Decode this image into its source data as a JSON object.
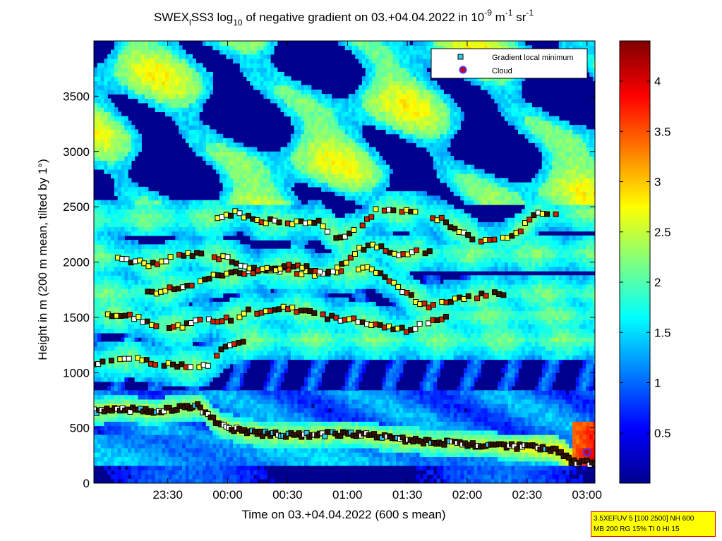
{
  "title": {
    "prefix": "SWEX",
    "sub": "l",
    "mid": "SS3 log",
    "log_base": "10",
    "rest": " of negative gradient on 03.+04.04.2022 in 10",
    "exp1": "-9",
    "unit1": " m",
    "exp2": "-1",
    "unit2": " sr",
    "exp3": "-1"
  },
  "info_box": {
    "line1": "3.5XEFUV 5 [100 2500] NH 600",
    "line2": "MB 200 RG 15% TI 0 HI 15"
  },
  "chart_data": {
    "type": "heatmap",
    "xlabel": "Time on 03.+04.04.2022 (600 s mean)",
    "ylabel": "Height in m (200 m mean, tilted by 1°)",
    "x_ticks": [
      "23:30",
      "00:00",
      "00:30",
      "01:00",
      "01:30",
      "02:00",
      "02:30",
      "03:00"
    ],
    "x_tick_minutes": [
      30,
      60,
      90,
      120,
      150,
      180,
      210,
      240
    ],
    "x_range_minutes": [
      -7,
      244
    ],
    "y_ticks": [
      0,
      500,
      1000,
      1500,
      2000,
      2500,
      3000,
      3500
    ],
    "ylim": [
      0,
      4000
    ],
    "colorbar": {
      "ticks": [
        0.5,
        1,
        1.5,
        2,
        2.5,
        3,
        3.5,
        4
      ],
      "range": [
        0,
        4.4
      ],
      "colormap": "jet"
    },
    "legend": {
      "placement": "top-right",
      "entries": [
        {
          "label": "Gradient local minimum",
          "marker": "square",
          "color": "#33ccee"
        },
        {
          "label": "Cloud",
          "marker": "circle",
          "color": "#cc0000"
        }
      ]
    },
    "series": [
      {
        "x": [
          -7,
          5,
          15,
          25,
          35,
          45,
          55,
          65,
          75,
          85,
          95,
          105,
          115,
          125,
          135,
          145,
          155,
          165,
          175,
          185,
          195,
          205,
          215,
          225,
          232,
          236,
          240,
          244
        ],
        "y": [
          650,
          680,
          660,
          650,
          680,
          700,
          540,
          480,
          450,
          440,
          430,
          440,
          450,
          440,
          420,
          400,
          380,
          370,
          360,
          350,
          340,
          330,
          320,
          300,
          200,
          190,
          185,
          180
        ]
      },
      {
        "x": [
          -7,
          0,
          10,
          20,
          30,
          40,
          50,
          60,
          70
        ],
        "y": [
          1080,
          1100,
          1130,
          1100,
          1070,
          1050,
          1080,
          1250,
          1300
        ]
      },
      {
        "x": [
          0,
          10,
          20,
          30,
          40,
          50,
          60,
          70,
          80,
          90,
          100,
          110,
          120,
          130,
          140,
          150,
          160,
          170
        ],
        "y": [
          1530,
          1530,
          1450,
          1420,
          1430,
          1480,
          1480,
          1550,
          1550,
          1580,
          1550,
          1500,
          1480,
          1460,
          1410,
          1380,
          1460,
          1520
        ]
      },
      {
        "x": [
          20,
          30,
          40,
          50,
          60,
          70,
          80,
          90,
          100,
          110,
          120,
          130,
          140,
          150,
          160,
          170,
          180,
          190,
          200
        ],
        "y": [
          1720,
          1750,
          1800,
          1850,
          1900,
          1910,
          1920,
          1930,
          1900,
          1880,
          1910,
          1950,
          1850,
          1700,
          1600,
          1650,
          1680,
          1700,
          1720
        ]
      },
      {
        "x": [
          5,
          15,
          25,
          35,
          45,
          55,
          65,
          75,
          85,
          95,
          105,
          115,
          125,
          135,
          145,
          155,
          165
        ],
        "y": [
          2050,
          2000,
          1970,
          2060,
          2070,
          2050,
          2000,
          1920,
          1940,
          1980,
          1900,
          1930,
          2110,
          2150,
          2050,
          2100,
          2080
        ]
      },
      {
        "x": [
          55,
          65,
          75,
          85,
          95,
          105,
          115,
          125,
          135,
          145,
          155,
          165,
          175,
          185,
          195,
          205,
          215,
          225
        ],
        "y": [
          2400,
          2450,
          2360,
          2370,
          2350,
          2370,
          2220,
          2300,
          2480,
          2450,
          2460,
          2400,
          2300,
          2200,
          2180,
          2260,
          2460,
          2450
        ]
      }
    ]
  }
}
